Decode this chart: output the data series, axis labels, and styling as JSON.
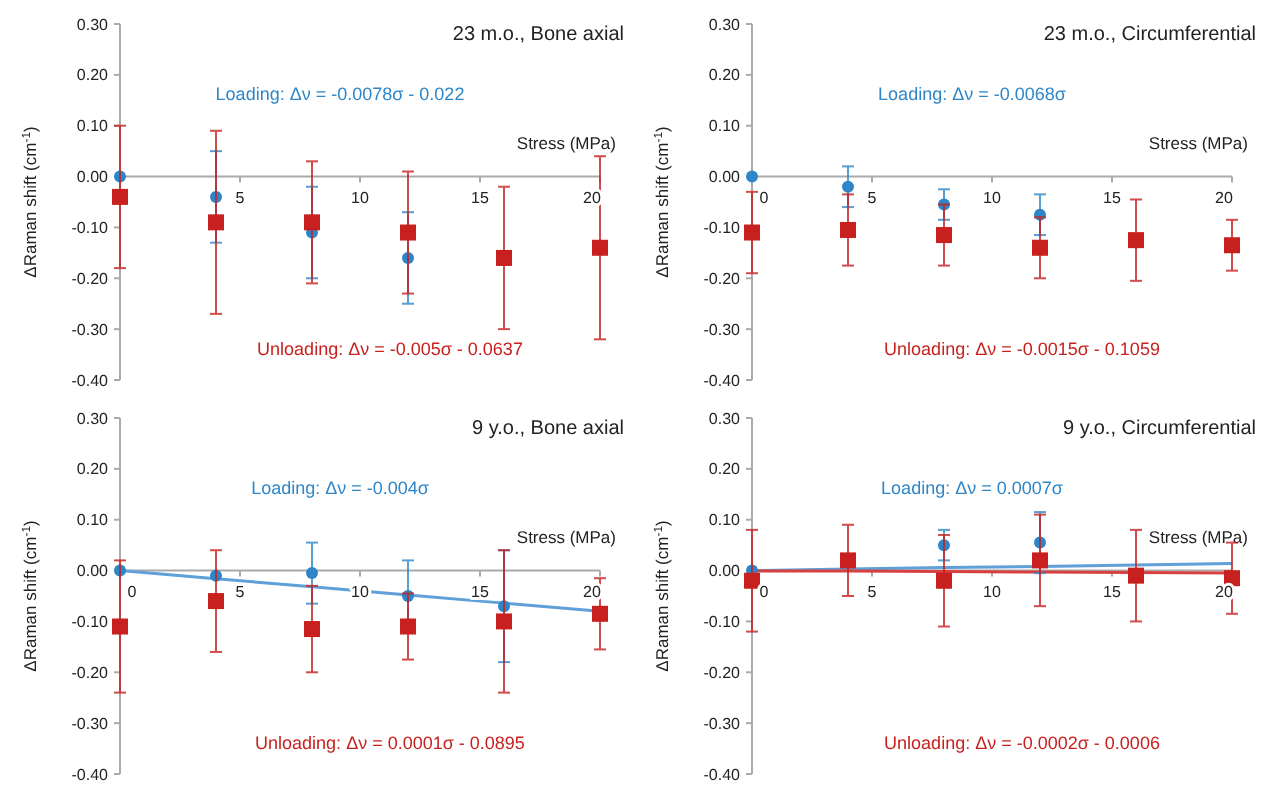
{
  "chart_data": [
    {
      "type": "scatter",
      "title": "23 m.o., Bone axial",
      "xlabel": "Stress (MPa)",
      "ylabel": "ΔRaman shift (cm$^{-1}$)",
      "xlim": [
        0,
        20
      ],
      "ylim": [
        -0.4,
        0.3
      ],
      "xticks": [
        {
          "value": 0,
          "label": null
        },
        5,
        10,
        15,
        20
      ],
      "yticks": [
        {
          "value": -0.4,
          "label": "-0.40"
        },
        {
          "value": -0.3,
          "label": "-0.30"
        },
        {
          "value": -0.2,
          "label": "-0.20"
        },
        {
          "value": -0.1,
          "label": "-0.10"
        },
        {
          "value": 0,
          "label": "0.00"
        },
        {
          "value": 0.1,
          "label": "0.10"
        },
        {
          "value": 0.2,
          "label": "0.20"
        },
        {
          "value": 0.3,
          "label": "0.30"
        }
      ],
      "x": [
        0,
        4,
        8,
        12,
        16,
        20
      ],
      "series": [
        {
          "color": "#2e86c8",
          "marker": "circle",
          "values": [
            0,
            -0.04,
            -0.11,
            -0.16,
            null,
            null
          ],
          "errors": [
            null,
            0.09,
            0.09,
            0.09,
            null,
            null
          ]
        },
        {
          "color": "#c8201e",
          "marker": "square",
          "values": [
            -0.04,
            -0.09,
            -0.09,
            -0.11,
            -0.16,
            -0.14
          ],
          "errors": [
            0.14,
            0.18,
            0.12,
            0.12,
            0.14,
            0.18
          ]
        }
      ],
      "annotations": [
        "Loading: Δν = -0.0078σ - 0.022",
        "Unloading: Δν = -0.005σ - 0.0637"
      ]
    },
    {
      "type": "scatter",
      "title": "23 m.o., Circumferential",
      "xlabel": "Stress (MPa)",
      "ylabel": "ΔRaman shift (cm$^{-1}$)",
      "xlim": [
        0,
        20
      ],
      "ylim": [
        -0.4,
        0.3
      ],
      "xticks": [
        0,
        5,
        10,
        15,
        20
      ],
      "yticks": [
        {
          "value": -0.4,
          "label": "-0.40"
        },
        {
          "value": -0.3,
          "label": "-0.30"
        },
        {
          "value": -0.2,
          "label": "-0.20"
        },
        {
          "value": -0.1,
          "label": "-0.10"
        },
        {
          "value": 0,
          "label": "0.00"
        },
        {
          "value": 0.1,
          "label": "0.10"
        },
        {
          "value": 0.2,
          "label": "0.20"
        },
        {
          "value": 0.3,
          "label": "0.30"
        }
      ],
      "x": [
        0,
        4,
        8,
        12,
        16,
        20
      ],
      "series": [
        {
          "color": "#2e86c8",
          "marker": "circle",
          "values": [
            0,
            -0.02,
            -0.055,
            -0.075,
            null,
            null
          ],
          "errors": [
            null,
            0.04,
            0.03,
            0.04,
            null,
            null
          ]
        },
        {
          "color": "#c8201e",
          "marker": "square",
          "values": [
            -0.11,
            -0.105,
            -0.115,
            -0.14,
            -0.125,
            -0.135
          ],
          "errors": [
            0.08,
            0.07,
            0.06,
            0.06,
            0.08,
            0.05
          ]
        }
      ],
      "annotations": [
        "Loading: Δν = -0.0068σ",
        "Unloading: Δν = -0.0015σ - 0.1059"
      ]
    },
    {
      "type": "scatter",
      "title": "9 y.o., Bone axial",
      "xlabel": "Stress (MPa)",
      "ylabel": "ΔRaman shift (cm$^{-1}$)",
      "xlim": [
        0,
        20
      ],
      "ylim": [
        -0.4,
        0.3
      ],
      "xticks": [
        0,
        5,
        10,
        15,
        20
      ],
      "yticks": [
        {
          "value": -0.4,
          "label": "-0.40"
        },
        {
          "value": -0.3,
          "label": "-0.30"
        },
        {
          "value": -0.2,
          "label": "-0.20"
        },
        {
          "value": -0.1,
          "label": "-0.10"
        },
        {
          "value": 0,
          "label": "0.00"
        },
        {
          "value": 0.1,
          "label": "0.10"
        },
        {
          "value": 0.2,
          "label": "0.20"
        },
        {
          "value": 0.3,
          "label": "0.30"
        }
      ],
      "x": [
        0,
        4,
        8,
        12,
        16,
        20
      ],
      "series": [
        {
          "color": "#2e86c8",
          "marker": "circle",
          "values": [
            0,
            -0.01,
            -0.005,
            -0.05,
            -0.07,
            null
          ],
          "errors": [
            null,
            null,
            0.06,
            0.07,
            0.11,
            null
          ]
        },
        {
          "color": "#c8201e",
          "marker": "square",
          "values": [
            -0.11,
            -0.06,
            -0.115,
            -0.11,
            -0.1,
            -0.085
          ],
          "errors": [
            0.13,
            0.1,
            0.085,
            0.065,
            0.14,
            0.07
          ]
        },
        {
          "type": "line",
          "color": "#5fa0d8",
          "values": [
            0,
            -0.016,
            -0.032,
            -0.048,
            -0.064,
            -0.08
          ]
        }
      ],
      "annotations": [
        "Loading: Δν = -0.004σ",
        "Unloading: Δν = 0.0001σ - 0.0895"
      ]
    },
    {
      "type": "scatter",
      "title": "9 y.o., Circumferential",
      "xlabel": "Stress (MPa)",
      "ylabel": "ΔRaman shift (cm$^{-1}$)",
      "xlim": [
        0,
        20
      ],
      "ylim": [
        -0.4,
        0.3
      ],
      "xticks": [
        0,
        5,
        10,
        15,
        20
      ],
      "yticks": [
        {
          "value": -0.4,
          "label": "-0.40"
        },
        {
          "value": -0.3,
          "label": "-0.30"
        },
        {
          "value": -0.2,
          "label": "-0.20"
        },
        {
          "value": -0.1,
          "label": "-0.10"
        },
        {
          "value": 0,
          "label": "0.00"
        },
        {
          "value": 0.1,
          "label": "0.10"
        },
        {
          "value": 0.2,
          "label": "0.20"
        },
        {
          "value": 0.3,
          "label": "0.30"
        }
      ],
      "x": [
        0,
        4,
        8,
        12,
        16,
        20
      ],
      "series": [
        {
          "color": "#2e86c8",
          "marker": "circle",
          "values": [
            0,
            null,
            0.05,
            0.055,
            null,
            null
          ],
          "errors": [
            null,
            null,
            0.03,
            0.06,
            null,
            null
          ]
        },
        {
          "color": "#c8201e",
          "marker": "square",
          "values": [
            -0.02,
            0.02,
            -0.02,
            0.02,
            -0.01,
            -0.015
          ],
          "errors": [
            0.1,
            0.07,
            0.09,
            0.09,
            0.09,
            0.07
          ]
        },
        {
          "type": "line",
          "color": "#5fa0d8",
          "values": [
            0,
            0.003,
            0.006,
            0.008,
            0.011,
            0.014
          ]
        },
        {
          "type": "line",
          "color": "#d84040",
          "values": [
            -0.001,
            -0.001,
            -0.002,
            -0.003,
            -0.004,
            -0.005
          ]
        }
      ],
      "annotations": [
        "Loading: Δν = 0.0007σ",
        "Unloading: Δν = -0.0002σ - 0.0006"
      ]
    }
  ]
}
